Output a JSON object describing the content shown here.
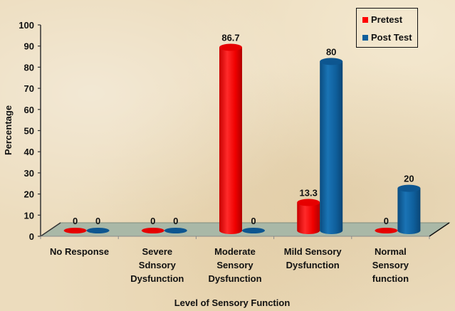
{
  "chart_data": {
    "type": "bar",
    "style": "3d-cylinder",
    "title": "",
    "xlabel": "Level of Sensory Function",
    "ylabel": "Percentage",
    "ylim": [
      0,
      100
    ],
    "yticks": [
      0,
      10,
      20,
      30,
      40,
      50,
      60,
      70,
      80,
      90,
      100
    ],
    "grid": false,
    "legend_position": "top-right",
    "categories": [
      "No Response",
      "Severe Sdnsory Dysfunction",
      "Moderate Sensory Dysfunction",
      "Mild Sensory Dysfunction",
      "Normal Sensory function"
    ],
    "category_label_lines": [
      [
        "No Response"
      ],
      [
        "Severe",
        "Sdnsory",
        "Dysfunction"
      ],
      [
        "Moderate",
        "Sensory",
        "Dysfunction"
      ],
      [
        "Mild Sensory",
        "Dysfunction"
      ],
      [
        "Normal",
        "Sensory",
        "function"
      ]
    ],
    "series": [
      {
        "name": "Pretest",
        "color": "#ff0000",
        "values": [
          0,
          0,
          86.7,
          13.3,
          0
        ],
        "labels": [
          "0",
          "0",
          "86.7",
          "13.3",
          "0"
        ]
      },
      {
        "name": "Post Test",
        "color": "#0f5f9c",
        "values": [
          0,
          0,
          0,
          80,
          20
        ],
        "labels": [
          "0",
          "0",
          "0",
          "80",
          "20"
        ]
      }
    ]
  },
  "legend": {
    "items": [
      {
        "label": "Pretest",
        "color": "#ff0000"
      },
      {
        "label": "Post Test",
        "color": "#0f5f9c"
      }
    ]
  }
}
